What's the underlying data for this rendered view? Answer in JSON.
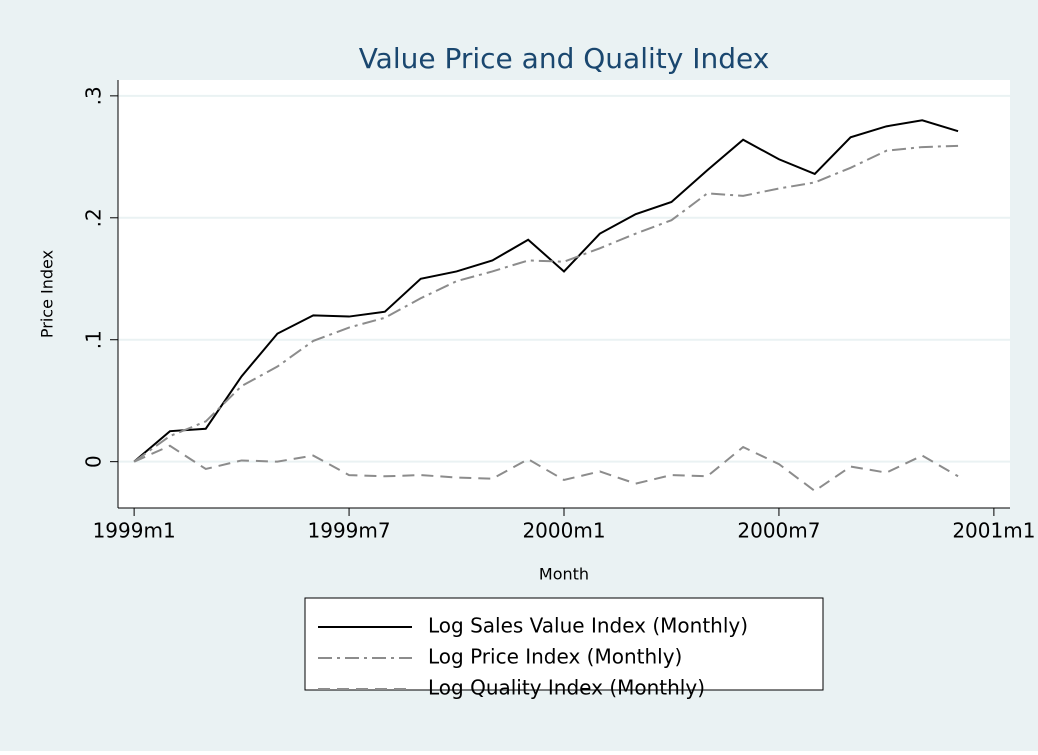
{
  "chart_data": {
    "type": "line",
    "title": "Value Price and Quality Index",
    "x_label": "Month",
    "y_label": "Price Index",
    "x": [
      468,
      469,
      470,
      471,
      472,
      473,
      474,
      475,
      476,
      477,
      478,
      479,
      480,
      481,
      482,
      483,
      484,
      485,
      486,
      487,
      488,
      489,
      490,
      491
    ],
    "series": [
      {
        "name": "Log Sales Value Index (Monthly)",
        "color": "#000000",
        "dash": "none",
        "values": [
          0,
          0.025,
          0.027,
          0.07,
          0.105,
          0.12,
          0.119,
          0.123,
          0.15,
          0.156,
          0.165,
          0.182,
          0.156,
          0.187,
          0.203,
          0.213,
          0.239,
          0.264,
          0.248,
          0.236,
          0.266,
          0.275,
          0.28,
          0.271
        ]
      },
      {
        "name": "Log Price Index (Monthly)",
        "color": "#8c8c8c",
        "dash": "14 5 3 5",
        "values": [
          0,
          0.021,
          0.033,
          0.062,
          0.078,
          0.099,
          0.11,
          0.118,
          0.134,
          0.148,
          0.156,
          0.165,
          0.164,
          0.175,
          0.187,
          0.198,
          0.22,
          0.218,
          0.224,
          0.229,
          0.241,
          0.255,
          0.258,
          0.259
        ]
      },
      {
        "name": "Log Quality Index (Monthly)",
        "color": "#8c8c8c",
        "dash": "12 7",
        "values": [
          0,
          0.013,
          -0.006,
          0.001,
          0.0,
          0.005,
          -0.011,
          -0.012,
          -0.011,
          -0.013,
          -0.014,
          0.002,
          -0.015,
          -0.008,
          -0.018,
          -0.011,
          -0.012,
          0.012,
          -0.002,
          -0.024,
          -0.004,
          -0.009,
          0.005,
          -0.012
        ]
      }
    ],
    "xlim": [
      467.55,
      492.45
    ],
    "xticks": [
      {
        "value": 468,
        "label": "1999m1"
      },
      {
        "value": 474,
        "label": "1999m7"
      },
      {
        "value": 480,
        "label": "2000m1"
      },
      {
        "value": 486,
        "label": "2000m7"
      },
      {
        "value": 492,
        "label": "2001m1"
      }
    ],
    "ylim": [
      -0.038,
      0.313
    ],
    "yticks": [
      0,
      {
        "value": 0.1,
        "label": ".1"
      },
      {
        "value": 0.2,
        "label": ".2"
      },
      {
        "value": 0.3,
        "label": ".3"
      }
    ],
    "grid": true
  }
}
